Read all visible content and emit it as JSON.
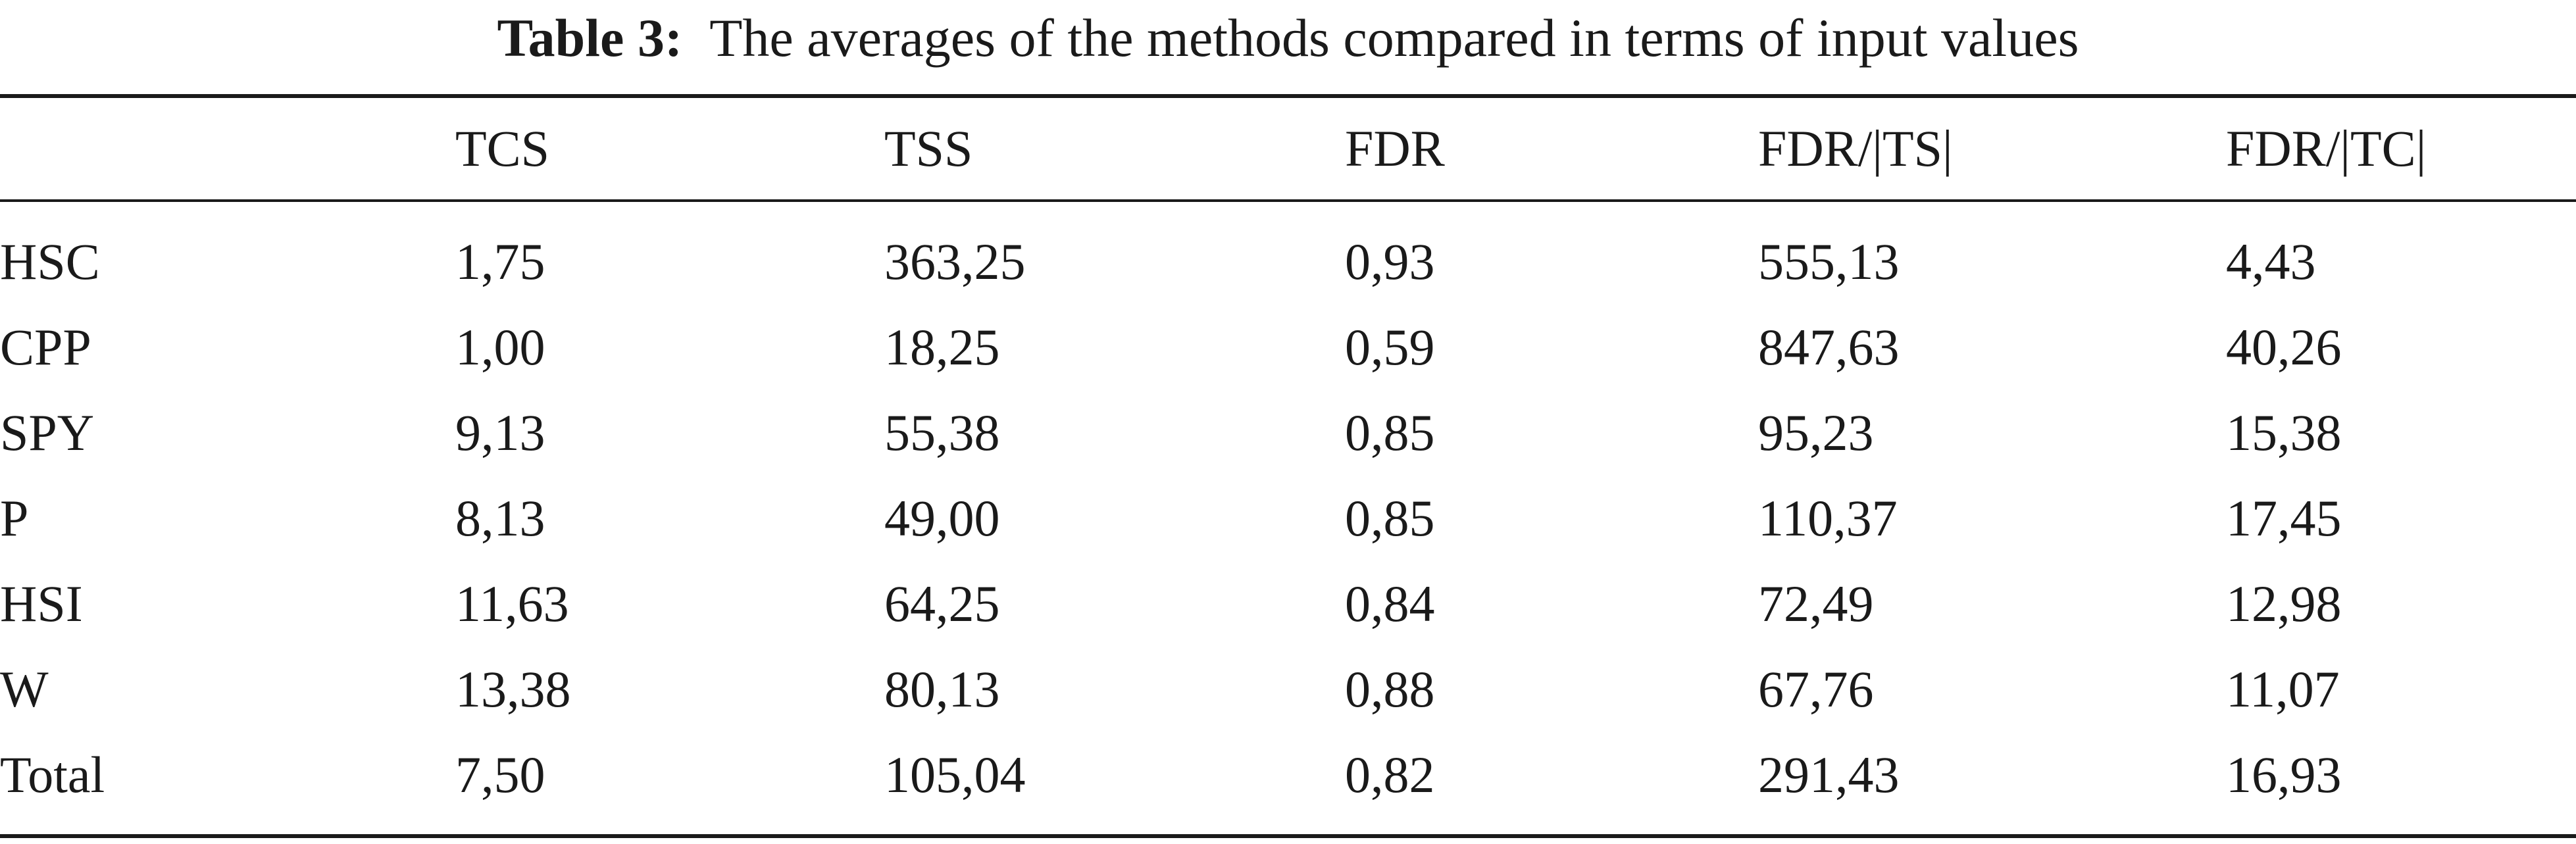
{
  "table": {
    "caption_label": "Table 3:",
    "caption_text": "The averages of the methods compared in terms of input values",
    "header": {
      "corner": "",
      "columns": [
        "TCS",
        "TSS",
        "FDR",
        "FDR/|TS|",
        "FDR/|TC|"
      ]
    },
    "rows": [
      {
        "label": "HSC",
        "values": [
          "1,75",
          "363,25",
          "0,93",
          "555,13",
          "4,43"
        ]
      },
      {
        "label": "CPP",
        "values": [
          "1,00",
          "18,25",
          "0,59",
          "847,63",
          "40,26"
        ]
      },
      {
        "label": "SPY",
        "values": [
          "9,13",
          "55,38",
          "0,85",
          "95,23",
          "15,38"
        ]
      },
      {
        "label": "P",
        "values": [
          "8,13",
          "49,00",
          "0,85",
          "110,37",
          "17,45"
        ]
      },
      {
        "label": "HSI",
        "values": [
          "11,63",
          "64,25",
          "0,84",
          "72,49",
          "12,98"
        ]
      },
      {
        "label": "W",
        "values": [
          "13,38",
          "80,13",
          "0,88",
          "67,76",
          "11,07"
        ]
      },
      {
        "label": "Total",
        "values": [
          "7,50",
          "105,04",
          "0,82",
          "291,43",
          "16,93"
        ]
      }
    ]
  }
}
